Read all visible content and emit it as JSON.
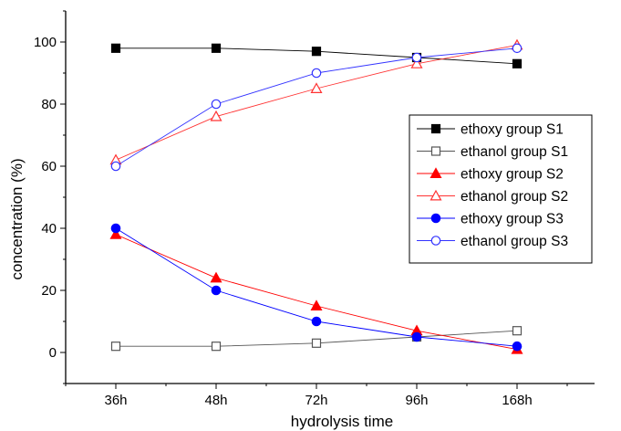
{
  "chart_data": {
    "type": "line",
    "title": "",
    "xlabel": "hydrolysis time",
    "ylabel": "concentration (%)",
    "categories": [
      "36h",
      "48h",
      "72h",
      "96h",
      "168h"
    ],
    "ylim": [
      -10,
      110
    ],
    "yticks": [
      0,
      20,
      40,
      60,
      80,
      100
    ],
    "grid": false,
    "legend_position": "right",
    "series": [
      {
        "name": "ethoxy group S1",
        "values": [
          98,
          98,
          97,
          95,
          93
        ],
        "color": "#000000",
        "marker": "square",
        "filled": true
      },
      {
        "name": "ethanol group S1",
        "values": [
          2,
          2,
          3,
          5,
          7
        ],
        "color": "#555555",
        "marker": "square",
        "filled": false
      },
      {
        "name": "ethoxy group S2",
        "values": [
          38,
          24,
          15,
          7,
          1
        ],
        "color": "#ff0000",
        "marker": "triangle",
        "filled": true
      },
      {
        "name": "ethanol group S2",
        "values": [
          62,
          76,
          85,
          93,
          99
        ],
        "color": "#ff3333",
        "marker": "triangle",
        "filled": false
      },
      {
        "name": "ethoxy group S3",
        "values": [
          40,
          20,
          10,
          5,
          2
        ],
        "color": "#0000ff",
        "marker": "circle",
        "filled": true
      },
      {
        "name": "ethanol group S3",
        "values": [
          60,
          80,
          90,
          95,
          98
        ],
        "color": "#3333ff",
        "marker": "circle",
        "filled": false
      }
    ]
  }
}
